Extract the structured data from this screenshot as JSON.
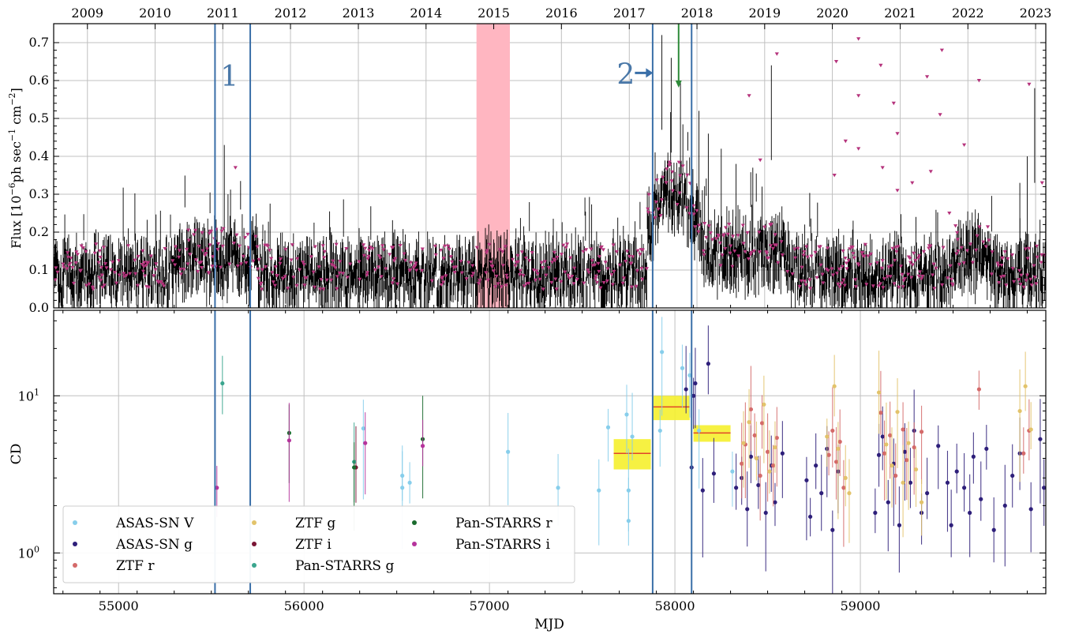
{
  "chart_data": [
    {
      "type": "scatter",
      "panel": "top",
      "ylabel_main": "Flux [10",
      "ylabel_exp1": "−6",
      "ylabel_mid": "ph sec",
      "ylabel_exp2": "−1",
      "ylabel_mid2": " cm",
      "ylabel_exp3": "−2",
      "ylabel_end": "]",
      "ylim": [
        0.0,
        0.75
      ],
      "yticks": [
        0.0,
        0.1,
        0.2,
        0.3,
        0.4,
        0.5,
        0.6,
        0.7
      ],
      "ytick_labels": [
        "0.0",
        "0.1",
        "0.2",
        "0.3",
        "0.4",
        "0.5",
        "0.6",
        "0.7"
      ],
      "xlim": [
        54650,
        60000
      ],
      "top_axis_years": [
        {
          "mjd": 54832,
          "label": "2009"
        },
        {
          "mjd": 55197,
          "label": "2010"
        },
        {
          "mjd": 55562,
          "label": "2011"
        },
        {
          "mjd": 55927,
          "label": "2012"
        },
        {
          "mjd": 56293,
          "label": "2013"
        },
        {
          "mjd": 56658,
          "label": "2014"
        },
        {
          "mjd": 57023,
          "label": "2015"
        },
        {
          "mjd": 57388,
          "label": "2016"
        },
        {
          "mjd": 57754,
          "label": "2017"
        },
        {
          "mjd": 58119,
          "label": "2018"
        },
        {
          "mjd": 58484,
          "label": "2019"
        },
        {
          "mjd": 58849,
          "label": "2020"
        },
        {
          "mjd": 59215,
          "label": "2021"
        },
        {
          "mjd": 59580,
          "label": "2022"
        },
        {
          "mjd": 59945,
          "label": "2023"
        }
      ],
      "shaded_interval": {
        "x0": 56930,
        "x1": 57110,
        "color": "#ffb6c1"
      },
      "annotations": [
        {
          "text": "1",
          "x": 55600,
          "y": 0.615
        },
        {
          "text": "2",
          "x": 57780,
          "y": 0.62
        }
      ],
      "series": [
        {
          "kind": "detections",
          "color": "#000000",
          "marker": "point"
        },
        {
          "kind": "upper-limits",
          "color": "#b5337c",
          "marker": "triangle-down"
        }
      ],
      "flare_peaks": [
        {
          "x": 55570,
          "y": 0.43
        },
        {
          "x": 55590,
          "y": 0.3
        },
        {
          "x": 57930,
          "y": 0.72
        },
        {
          "x": 57980,
          "y": 0.66
        },
        {
          "x": 58030,
          "y": 0.6
        },
        {
          "x": 58130,
          "y": 0.52
        },
        {
          "x": 58180,
          "y": 0.46
        },
        {
          "x": 58250,
          "y": 0.42
        },
        {
          "x": 58330,
          "y": 0.38
        },
        {
          "x": 58420,
          "y": 0.37
        },
        {
          "x": 58520,
          "y": 0.64
        },
        {
          "x": 58470,
          "y": 0.32
        },
        {
          "x": 59860,
          "y": 0.33
        },
        {
          "x": 59940,
          "y": 0.58
        },
        {
          "x": 59300,
          "y": 0.24
        },
        {
          "x": 59620,
          "y": 0.26
        },
        {
          "x": 58700,
          "y": 0.22
        },
        {
          "x": 59900,
          "y": 0.4
        }
      ],
      "upper_limit_outliers": [
        {
          "x": 55630,
          "y": 0.37
        },
        {
          "x": 58400,
          "y": 0.56
        },
        {
          "x": 58460,
          "y": 0.39
        },
        {
          "x": 58550,
          "y": 0.67
        },
        {
          "x": 58870,
          "y": 0.65
        },
        {
          "x": 58860,
          "y": 0.35
        },
        {
          "x": 58920,
          "y": 0.44
        },
        {
          "x": 58990,
          "y": 0.71
        },
        {
          "x": 58990,
          "y": 0.56
        },
        {
          "x": 58990,
          "y": 0.42
        },
        {
          "x": 59110,
          "y": 0.64
        },
        {
          "x": 59120,
          "y": 0.37
        },
        {
          "x": 59180,
          "y": 0.54
        },
        {
          "x": 59200,
          "y": 0.46
        },
        {
          "x": 59280,
          "y": 0.33
        },
        {
          "x": 59360,
          "y": 0.61
        },
        {
          "x": 59380,
          "y": 0.36
        },
        {
          "x": 59430,
          "y": 0.51
        },
        {
          "x": 59440,
          "y": 0.68
        },
        {
          "x": 59560,
          "y": 0.43
        },
        {
          "x": 59640,
          "y": 0.6
        },
        {
          "x": 59910,
          "y": 0.59
        },
        {
          "x": 59980,
          "y": 0.33
        },
        {
          "x": 59480,
          "y": 0.25
        },
        {
          "x": 59200,
          "y": 0.31
        }
      ]
    },
    {
      "type": "scatter",
      "panel": "bottom",
      "xlabel": "MJD",
      "ylabel": "CD",
      "yscale": "log",
      "ylim": [
        0.55,
        35
      ],
      "ytick_major": [
        1,
        10
      ],
      "xlim": [
        54650,
        60000
      ],
      "xticks": [
        55000,
        56000,
        57000,
        58000,
        59000
      ],
      "xtick_labels": [
        "55000",
        "56000",
        "57000",
        "58000",
        "59000"
      ],
      "vertical_lines_mjd": [
        55520,
        55710,
        57880,
        58090
      ],
      "bin_boxes": [
        {
          "x0": 57670,
          "x1": 57870,
          "y": 4.3,
          "ylo": 3.4,
          "yhi": 5.3
        },
        {
          "x0": 57880,
          "x1": 58080,
          "y": 8.5,
          "ylo": 7.0,
          "yhi": 10.0
        },
        {
          "x0": 58100,
          "x1": 58300,
          "y": 5.8,
          "ylo": 5.1,
          "yhi": 6.5
        }
      ],
      "legend": {
        "placement": "lower-left",
        "entries": [
          {
            "label": "ASAS-SN V",
            "color": "#87ceeb"
          },
          {
            "label": "ASAS-SN g",
            "color": "#2e1f7a"
          },
          {
            "label": "ZTF r",
            "color": "#d46a6a"
          },
          {
            "label": "ZTF g",
            "color": "#e2c36b"
          },
          {
            "label": "ZTF i",
            "color": "#7a1535"
          },
          {
            "label": "Pan-STARRS g",
            "color": "#3aa58e"
          },
          {
            "label": "Pan-STARRS r",
            "color": "#1a6b2e"
          },
          {
            "label": "Pan-STARRS i",
            "color": "#b5339c"
          }
        ]
      },
      "series": [
        {
          "name": "ASAS-SN V",
          "points": [
            [
              56320,
              6.2
            ],
            [
              56530,
              3.1
            ],
            [
              56530,
              2.6
            ],
            [
              56570,
              2.8
            ],
            [
              57100,
              4.4
            ],
            [
              57370,
              2.6
            ],
            [
              57590,
              2.5
            ],
            [
              57640,
              6.3
            ],
            [
              57740,
              7.6
            ],
            [
              57750,
              2.5
            ],
            [
              57750,
              1.6
            ],
            [
              57770,
              5.5
            ],
            [
              57920,
              6.0
            ],
            [
              57930,
              19.0
            ],
            [
              58040,
              15.0
            ],
            [
              58080,
              13.5
            ],
            [
              58130,
              6.0
            ],
            [
              58310,
              3.3
            ]
          ]
        },
        {
          "name": "ASAS-SN g",
          "points": [
            [
              58060,
              11.0
            ],
            [
              58090,
              3.5
            ],
            [
              58100,
              10.0
            ],
            [
              58110,
              12.0
            ],
            [
              58150,
              2.5
            ],
            [
              58180,
              16.0
            ],
            [
              58210,
              3.2
            ],
            [
              58330,
              2.6
            ],
            [
              58360,
              3.0
            ],
            [
              58390,
              1.9
            ],
            [
              58410,
              4.1
            ],
            [
              58450,
              2.7
            ],
            [
              58490,
              1.8
            ],
            [
              58520,
              3.6
            ],
            [
              58540,
              2.1
            ],
            [
              58580,
              4.3
            ],
            [
              58710,
              2.9
            ],
            [
              58730,
              1.7
            ],
            [
              58760,
              3.6
            ],
            [
              58790,
              2.4
            ],
            [
              58820,
              4.6
            ],
            [
              58850,
              1.4
            ],
            [
              58880,
              3.3
            ],
            [
              59080,
              1.8
            ],
            [
              59100,
              4.2
            ],
            [
              59120,
              5.5
            ],
            [
              59150,
              2.1
            ],
            [
              59180,
              3.7
            ],
            [
              59210,
              1.5
            ],
            [
              59240,
              4.4
            ],
            [
              59270,
              2.8
            ],
            [
              59290,
              6.0
            ],
            [
              59330,
              1.8
            ],
            [
              59360,
              2.4
            ],
            [
              59420,
              4.8
            ],
            [
              59470,
              2.8
            ],
            [
              59490,
              1.5
            ],
            [
              59520,
              3.3
            ],
            [
              59560,
              2.6
            ],
            [
              59590,
              1.8
            ],
            [
              59610,
              4.1
            ],
            [
              59650,
              2.2
            ],
            [
              59680,
              4.6
            ],
            [
              59720,
              1.4
            ],
            [
              59780,
              2.0
            ],
            [
              59820,
              3.1
            ],
            [
              59860,
              4.3
            ],
            [
              59920,
              1.9
            ],
            [
              59970,
              5.3
            ],
            [
              59990,
              2.6
            ]
          ]
        },
        {
          "name": "ZTF r",
          "points": [
            [
              58360,
              3.7
            ],
            [
              58380,
              4.9
            ],
            [
              58410,
              8.2
            ],
            [
              58430,
              5.6
            ],
            [
              58460,
              3.1
            ],
            [
              58470,
              6.7
            ],
            [
              58500,
              4.4
            ],
            [
              58530,
              3.6
            ],
            [
              58550,
              5.4
            ],
            [
              58830,
              4.2
            ],
            [
              58850,
              6.0
            ],
            [
              58870,
              3.8
            ],
            [
              58890,
              5.1
            ],
            [
              58910,
              2.6
            ],
            [
              59110,
              7.8
            ],
            [
              59130,
              4.3
            ],
            [
              59160,
              5.6
            ],
            [
              59190,
              3.1
            ],
            [
              59230,
              6.1
            ],
            [
              59250,
              3.9
            ],
            [
              59290,
              4.7
            ],
            [
              59330,
              5.9
            ],
            [
              59640,
              11.0
            ],
            [
              59880,
              4.3
            ],
            [
              59910,
              6.0
            ]
          ]
        },
        {
          "name": "ZTF g",
          "points": [
            [
              58370,
              5.0
            ],
            [
              58400,
              6.8
            ],
            [
              58440,
              4.0
            ],
            [
              58480,
              8.8
            ],
            [
              58510,
              3.3
            ],
            [
              58540,
              4.7
            ],
            [
              58820,
              5.5
            ],
            [
              58860,
              11.5
            ],
            [
              58880,
              4.6
            ],
            [
              58920,
              3.0
            ],
            [
              58940,
              2.4
            ],
            [
              59100,
              10.5
            ],
            [
              59140,
              4.9
            ],
            [
              59170,
              3.6
            ],
            [
              59200,
              7.9
            ],
            [
              59230,
              2.8
            ],
            [
              59260,
              5.0
            ],
            [
              59300,
              3.4
            ],
            [
              59330,
              2.1
            ],
            [
              59860,
              8.0
            ],
            [
              59890,
              11.5
            ],
            [
              59920,
              6.1
            ]
          ]
        },
        {
          "name": "ZTF i",
          "points": [
            [
              56280,
              3.5
            ]
          ]
        },
        {
          "name": "Pan-STARRS g",
          "points": [
            [
              55560,
              12.0
            ],
            [
              56270,
              3.8
            ]
          ]
        },
        {
          "name": "Pan-STARRS r",
          "points": [
            [
              55920,
              5.8
            ],
            [
              56640,
              5.3
            ],
            [
              56270,
              3.5
            ]
          ]
        },
        {
          "name": "Pan-STARRS i",
          "points": [
            [
              55530,
              2.6
            ],
            [
              55920,
              5.2
            ],
            [
              56330,
              5.0
            ],
            [
              56640,
              4.8
            ]
          ]
        }
      ]
    }
  ]
}
